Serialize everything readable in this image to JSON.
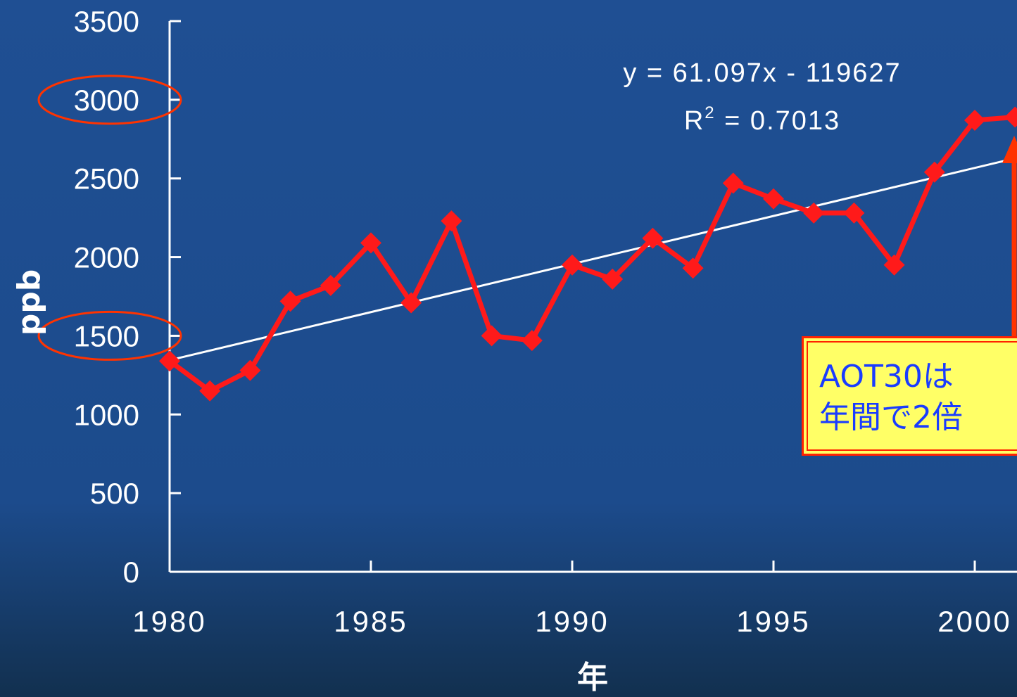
{
  "colors": {
    "background": "#1c4b8c",
    "series": "#ff1a1a",
    "trendline": "#ffffff",
    "axis": "#ffffff",
    "highlight_ellipse": "#ff3300",
    "callout_bg": "#ffff66",
    "callout_text": "#1a3cff",
    "callout_border": "#ff2200"
  },
  "chart_data": {
    "type": "line",
    "ylabel": "ppb",
    "xlabel": "年",
    "ylim": [
      0,
      3500
    ],
    "xlim": [
      1980,
      2001
    ],
    "y_ticks": [
      "0",
      "500",
      "1000",
      "1500",
      "2000",
      "2500",
      "3000",
      "3500"
    ],
    "x_ticks": [
      "1980",
      "1985",
      "1990",
      "1995",
      "2000"
    ],
    "highlighted_y_ticks": [
      "3000",
      "1500"
    ],
    "grid": false,
    "series": [
      {
        "x": [
          1980,
          1981,
          1982,
          1983,
          1984,
          1985,
          1986,
          1987,
          1988,
          1989,
          1990,
          1991,
          1992,
          1993,
          1994,
          1995,
          1996,
          1997,
          1998,
          1999,
          2000,
          2001
        ],
        "values": [
          1340,
          1150,
          1280,
          1720,
          1820,
          2090,
          1710,
          2230,
          1500,
          1470,
          1950,
          1860,
          2120,
          1930,
          2470,
          2370,
          2280,
          2280,
          1950,
          2540,
          2870,
          2890
        ]
      }
    ],
    "trendline": {
      "slope": 61.097,
      "intercept": -119627,
      "equation": "y = 61.097x - 119627",
      "r2_label": "R",
      "r2_sup": "2",
      "r2_value": " = 0.7013"
    }
  },
  "callout": {
    "line1": "AOT30は",
    "line2": "年間で2倍"
  }
}
